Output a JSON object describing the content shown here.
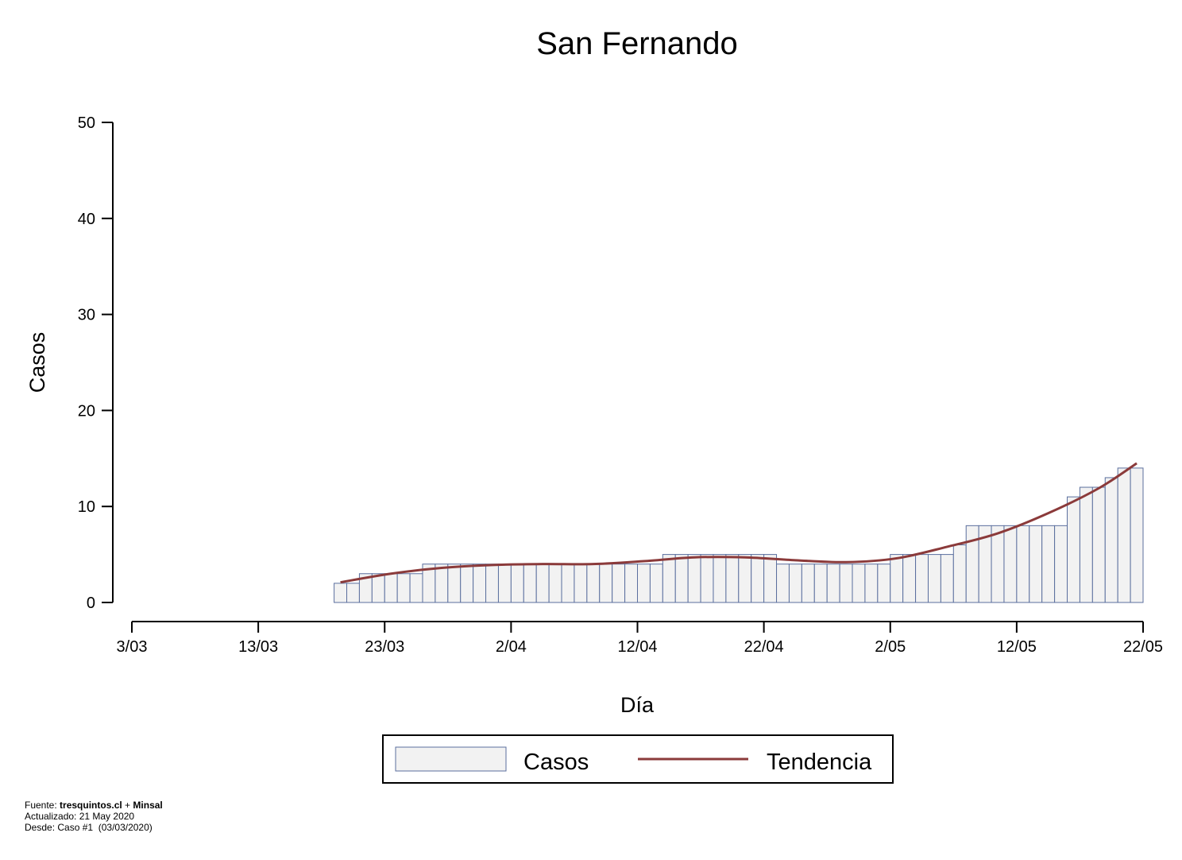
{
  "chart_data": {
    "type": "bar",
    "title": "San Fernando",
    "xlabel": "Día",
    "ylabel": "Casos",
    "ylim": [
      0,
      50
    ],
    "yticks": [
      0,
      10,
      20,
      30,
      40,
      50
    ],
    "xticks": [
      "3/03",
      "13/03",
      "23/03",
      "2/04",
      "12/04",
      "22/04",
      "2/05",
      "12/05",
      "22/05"
    ],
    "x_start": "3/03",
    "x_end": "22/05",
    "grid": false,
    "legend_position": "bottom-center",
    "colors": {
      "bar_fill": "#f2f2f2",
      "bar_stroke": "#5b6f9e",
      "trend": "#8b3a3a"
    },
    "series": [
      {
        "name": "Casos",
        "type": "bar",
        "start_date": "19/03",
        "values": [
          2,
          2,
          3,
          3,
          3,
          3,
          3,
          4,
          4,
          4,
          4,
          4,
          4,
          4,
          4,
          4,
          4,
          4,
          4,
          4,
          4,
          4,
          4,
          4,
          4,
          4,
          5,
          5,
          5,
          5,
          5,
          5,
          5,
          5,
          5,
          4,
          4,
          4,
          4,
          4,
          4,
          4,
          4,
          4,
          5,
          5,
          5,
          5,
          5,
          6,
          8,
          8,
          8,
          8,
          8,
          8,
          8,
          8,
          11,
          12,
          12,
          13,
          14,
          14
        ]
      },
      {
        "name": "Tendencia",
        "type": "line",
        "x": [
          "19/03",
          "23/03",
          "27/03",
          "31/03",
          "4/04",
          "8/04",
          "12/04",
          "16/04",
          "20/04",
          "24/04",
          "28/04",
          "2/05",
          "6/05",
          "10/05",
          "14/05",
          "18/05",
          "21/05"
        ],
        "values": [
          2.1,
          3.0,
          3.6,
          3.9,
          4.0,
          4.0,
          4.3,
          4.7,
          4.7,
          4.4,
          4.2,
          4.6,
          5.8,
          7.2,
          9.3,
          11.9,
          14.5
        ]
      }
    ]
  },
  "footer": {
    "source_prefix": "Fuente: ",
    "source_site": "tresquintos.cl",
    "source_plus": " + ",
    "source_org": "Minsal",
    "updated": "Actualizado: 21 May 2020",
    "since": "Desde: Caso #1  (03/03/2020)"
  }
}
